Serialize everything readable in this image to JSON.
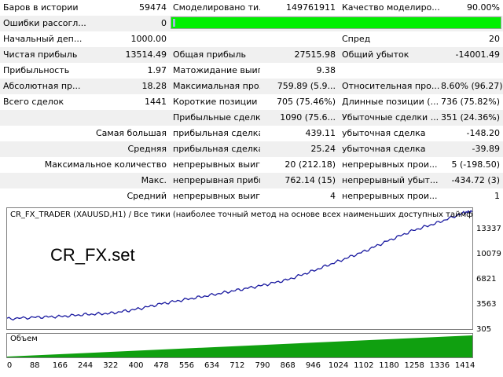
{
  "stats": {
    "bars_in_history": {
      "label": "Баров в истории",
      "value": "59474"
    },
    "modeled_ticks": {
      "label": "Смоделировано ти...",
      "value": "149761911"
    },
    "modeling_quality": {
      "label": "Качество моделиро...",
      "value": "90.00%"
    },
    "mismatch_errors": {
      "label": "Ошибки рассогл...",
      "value": "0"
    },
    "quality_bar_fraction": 1.0,
    "initial_deposit": {
      "label": "Начальный деп...",
      "value": "1000.00"
    },
    "spread": {
      "label": "Спред",
      "value": "20"
    },
    "net_profit": {
      "label": "Чистая прибыль",
      "value": "13514.49"
    },
    "gross_profit": {
      "label": "Общая прибыль",
      "value": "27515.98"
    },
    "gross_loss": {
      "label": "Общий убыток",
      "value": "-14001.49"
    },
    "profit_factor": {
      "label": "Прибыльность",
      "value": "1.97"
    },
    "expected_payoff": {
      "label": "Матожидание выиг...",
      "value": "9.38"
    },
    "absolute_drawdown": {
      "label": "Абсолютная пр...",
      "value": "18.28"
    },
    "maximal_drawdown": {
      "label": "Максимальная про...",
      "value": "759.89 (5.9..."
    },
    "relative_drawdown": {
      "label": "Относительная про...",
      "value": "8.60% (96.27)"
    },
    "total_trades": {
      "label": "Всего сделок",
      "value": "1441"
    },
    "short_positions": {
      "label": "Короткие позиции (...",
      "value": "705 (75.46%)"
    },
    "long_positions": {
      "label": "Длинные позиции (...",
      "value": "736 (75.82%)"
    },
    "profit_trades": {
      "label": "Прибыльные сделк...",
      "value": "1090 (75.6..."
    },
    "loss_trades": {
      "label": "Убыточные сделки ...",
      "value": "351 (24.36%)"
    },
    "largest": {
      "label": "Самая большая",
      "p_label": "прибыльная сделка",
      "p_value": "439.11",
      "l_label": "убыточная сделка",
      "l_value": "-148.20"
    },
    "average": {
      "label": "Средняя",
      "p_label": "прибыльная сделка",
      "p_value": "25.24",
      "l_label": "убыточная сделка",
      "l_value": "-39.89"
    },
    "max_count": {
      "label": "Максимальное количество",
      "p_label": "непрерывных выиг...",
      "p_value": "20 (212.18)",
      "l_label": "непрерывных прои...",
      "l_value": "5 (-198.50)"
    },
    "max_amount": {
      "label": "Макс.",
      "p_label": "непрерывная прибы...",
      "p_value": "762.14 (15)",
      "l_label": "непрерывный убыт...",
      "l_value": "-434.72 (3)"
    },
    "avg_consecutive": {
      "label": "Средний",
      "p_label": "непрерывных выиг...",
      "p_value": "4",
      "l_label": "непрерывных прои...",
      "l_value": "1"
    }
  },
  "chart": {
    "title": "CR_FX_TRADER (XAUUSD,H1) / Все тики (наиболее точный метод на основе всех наименьших доступных таймфреймов для генерации",
    "overlay": "CR_FX.set",
    "volume_label": "Объем",
    "y_ticks": [
      "13337",
      "10079",
      "6821",
      "3563",
      "305"
    ],
    "x_ticks": [
      "0",
      "88",
      "166",
      "244",
      "322",
      "400",
      "478",
      "556",
      "634",
      "712",
      "790",
      "868",
      "946",
      "1024",
      "1102",
      "1180",
      "1258",
      "1336",
      "1414"
    ]
  },
  "colors": {
    "balance_line": "#1a1aa0",
    "volume": "#10a010",
    "quality_bar": "#00f000"
  },
  "chart_data": {
    "type": "line",
    "title": "CR_FX_TRADER (XAUUSD,H1)",
    "xlabel": "",
    "ylabel": "",
    "xlim": [
      0,
      1441
    ],
    "ylim": [
      305,
      14500
    ],
    "series": [
      {
        "x": [
          0,
          88,
          166,
          244,
          322,
          400,
          478,
          556,
          634,
          712,
          790,
          868,
          946,
          1024,
          1102,
          1180,
          1258,
          1336,
          1414,
          1441
        ],
        "values": [
          1000,
          1200,
          1300,
          1550,
          1700,
          2200,
          2900,
          3450,
          4000,
          4600,
          5200,
          5900,
          7000,
          8200,
          9400,
          10800,
          12100,
          13100,
          14300,
          14514
        ]
      }
    ]
  }
}
